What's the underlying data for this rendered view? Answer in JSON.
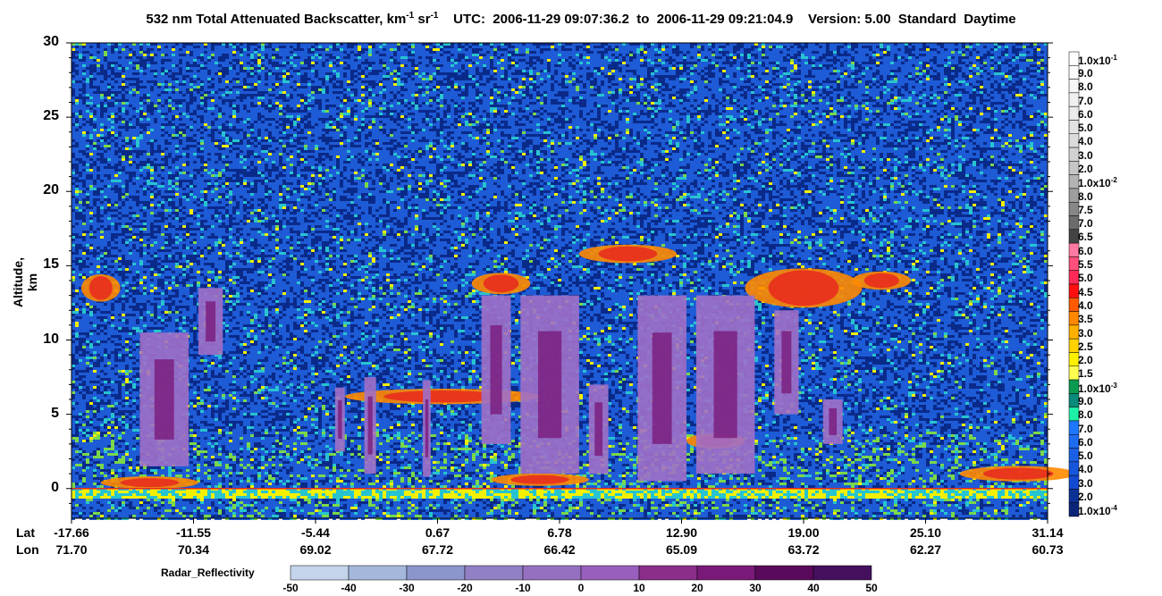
{
  "title_parts": {
    "main": "532 nm Total Attenuated Backscatter, km",
    "exp1": "-1",
    "unit2": " sr",
    "exp2": "-1",
    "rest": "    UTC:  2006-11-29 09:07:36.2  to  2006-11-29 09:21:04.9    Version: 5.00  Standard  Daytime"
  },
  "colors": {
    "background_dark": "#0a2a8a",
    "background_blue": "#1e5bd6",
    "noise_cyan": "#27c4d0",
    "noise_yellow": "#f4f000",
    "noise_green": "#7ad84a",
    "cloud_red": "#e8281e",
    "cloud_orange": "#ff8a00",
    "cloud_gray": "#c8c8c8",
    "radar_purple": "#a070c8",
    "radar_deep": "#7a2080"
  },
  "chart_data": [
    {
      "type": "heatmap",
      "title": "532 nm Total Attenuated Backscatter, km-1 sr-1",
      "ylabel": "Altitude, km",
      "ylim": [
        -2,
        30
      ],
      "yticks": [
        0,
        5,
        10,
        15,
        20,
        25,
        30
      ],
      "x_row_labels": [
        "Lat",
        "Lon"
      ],
      "x_ticks": [
        {
          "lat": "-17.66",
          "lon": "71.70"
        },
        {
          "lat": "-11.55",
          "lon": "70.34"
        },
        {
          "lat": "-5.44",
          "lon": "69.02"
        },
        {
          "lat": "0.67",
          "lon": "67.72"
        },
        {
          "lat": "6.78",
          "lon": "66.42"
        },
        {
          "lat": "12.90",
          "lon": "65.09"
        },
        {
          "lat": "19.00",
          "lon": "63.72"
        },
        {
          "lat": "25.10",
          "lon": "62.27"
        },
        {
          "lat": "31.14",
          "lon": "60.73"
        }
      ],
      "colorbar": {
        "levels": [
          {
            "label": "1.0x10",
            "exp": "-1",
            "color": "#ffffff"
          },
          {
            "label": "9.0",
            "color": "#fbfbfb"
          },
          {
            "label": "8.0",
            "color": "#f6f6f6"
          },
          {
            "label": "7.0",
            "color": "#f0f0f0"
          },
          {
            "label": "6.0",
            "color": "#eaeaea"
          },
          {
            "label": "5.0",
            "color": "#e3e3e3"
          },
          {
            "label": "4.0",
            "color": "#dcdcdc"
          },
          {
            "label": "3.0",
            "color": "#d2d2d2"
          },
          {
            "label": "2.0",
            "color": "#c6c6c6"
          },
          {
            "label": "1.0x10",
            "exp": "-2",
            "color": "#b4b4b4"
          },
          {
            "label": "8.0",
            "color": "#9e9e9e"
          },
          {
            "label": "7.5",
            "color": "#878787"
          },
          {
            "label": "7.0",
            "color": "#6c6c6c"
          },
          {
            "label": "6.5",
            "color": "#444444"
          },
          {
            "label": "6.0",
            "color": "#ff7aa2"
          },
          {
            "label": "5.5",
            "color": "#ff4f7c"
          },
          {
            "label": "5.0",
            "color": "#ff2a55"
          },
          {
            "label": "4.5",
            "color": "#ff1010"
          },
          {
            "label": "4.0",
            "color": "#ff5a00"
          },
          {
            "label": "3.5",
            "color": "#ff8800"
          },
          {
            "label": "3.0",
            "color": "#ffb000"
          },
          {
            "label": "2.5",
            "color": "#ffd200"
          },
          {
            "label": "2.0",
            "color": "#fff000"
          },
          {
            "label": "1.5",
            "color": "#ffff50"
          },
          {
            "label": "1.0x10",
            "exp": "-3",
            "color": "#0a9a50"
          },
          {
            "label": "9.0",
            "color": "#0a8a7a"
          },
          {
            "label": "8.0",
            "color": "#1ef0a8"
          },
          {
            "label": "7.0",
            "color": "#1e78ff"
          },
          {
            "label": "6.0",
            "color": "#1e6cf0"
          },
          {
            "label": "5.0",
            "color": "#1a60e6"
          },
          {
            "label": "4.0",
            "color": "#1656dc"
          },
          {
            "label": "3.0",
            "color": "#124ad2"
          },
          {
            "label": "2.0",
            "color": "#0a3296"
          },
          {
            "label": "1.0x10",
            "exp": "-4",
            "color": "#0a2478"
          }
        ]
      }
    },
    {
      "type": "colorbar",
      "title": "Radar_Reflectivity",
      "ticks": [
        "-50",
        "-40",
        "-30",
        "-20",
        "-10",
        "0",
        "10",
        "20",
        "30",
        "40",
        "50"
      ],
      "colors": [
        "#c4d4ea",
        "#a4b8dc",
        "#8c96cc",
        "#9280c4",
        "#9670c0",
        "#9860bc",
        "#8a2e8a",
        "#7a1a78",
        "#5a0a5a",
        "#44105e"
      ]
    }
  ]
}
